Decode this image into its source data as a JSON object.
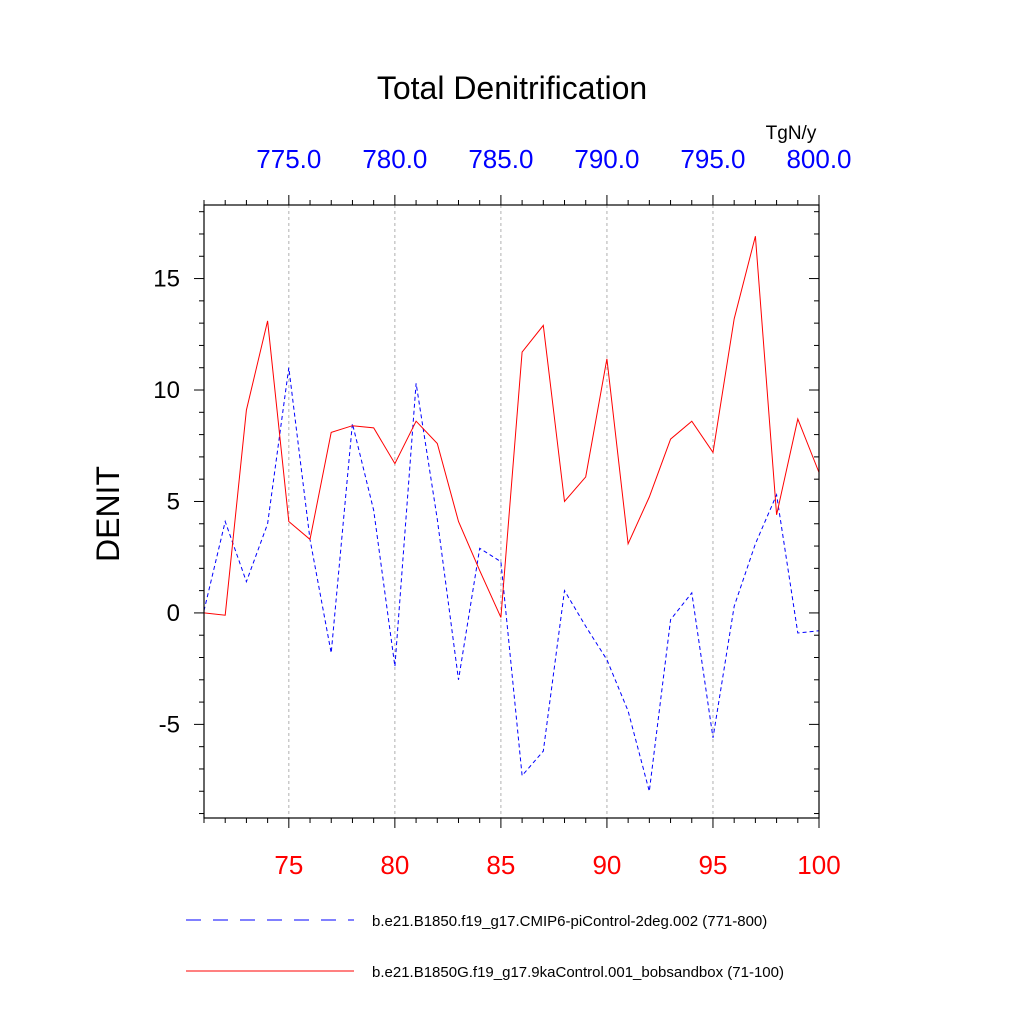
{
  "chart_data": {
    "type": "line",
    "title": "Total Denitrification",
    "ylabel": "DENIT",
    "units": "TgN/y",
    "ylim": [
      -9.2,
      18.3
    ],
    "yticks": [
      -5,
      0,
      5,
      10,
      15
    ],
    "ytick_labels": [
      "-5",
      "0",
      "5",
      "10",
      "15"
    ],
    "bottom_axis": {
      "xlim": [
        71,
        100
      ],
      "ticks": [
        75,
        80,
        85,
        90,
        95,
        100
      ],
      "tick_labels": [
        "75",
        "80",
        "85",
        "90",
        "95",
        "100"
      ],
      "color": "#ff0000"
    },
    "top_axis": {
      "xlim": [
        771,
        800
      ],
      "ticks": [
        775,
        780,
        785,
        790,
        795,
        800
      ],
      "tick_labels": [
        "775.0",
        "780.0",
        "785.0",
        "790.0",
        "795.0",
        "800.0"
      ],
      "color": "#0000ff"
    },
    "grid": "vertical-dashed",
    "series": [
      {
        "name": "b.e21.B1850.f19_g17.CMIP6-piControl-2deg.002 (771-800)",
        "color": "#0000ff",
        "dash": "dashed",
        "axis": "top",
        "x": [
          771,
          772,
          773,
          774,
          775,
          776,
          777,
          778,
          779,
          780,
          781,
          782,
          783,
          784,
          785,
          786,
          787,
          788,
          789,
          790,
          791,
          792,
          793,
          794,
          795,
          796,
          797,
          798,
          799,
          800
        ],
        "values": [
          0.1,
          4.1,
          1.4,
          4.0,
          11.0,
          3.3,
          -1.8,
          8.5,
          4.6,
          -2.4,
          10.3,
          4.2,
          -3.0,
          2.9,
          2.3,
          -7.3,
          -6.2,
          1.0,
          -0.6,
          -2.1,
          -4.4,
          -8.0,
          -0.3,
          0.9,
          -5.6,
          0.3,
          3.1,
          5.3,
          -0.9,
          -0.8
        ]
      },
      {
        "name": "b.e21.B1850G.f19_g17.9kaControl.001_bobsandbox (71-100)",
        "color": "#ff0000",
        "dash": "solid",
        "axis": "bottom",
        "x": [
          71,
          72,
          73,
          74,
          75,
          76,
          77,
          78,
          79,
          80,
          81,
          82,
          83,
          84,
          85,
          86,
          87,
          88,
          89,
          90,
          91,
          92,
          93,
          94,
          95,
          96,
          97,
          98,
          99,
          100
        ],
        "values": [
          0.0,
          -0.1,
          9.1,
          13.1,
          4.1,
          3.3,
          8.1,
          8.4,
          8.3,
          6.7,
          8.6,
          7.6,
          4.1,
          1.9,
          -0.2,
          11.7,
          12.9,
          5.0,
          6.1,
          11.4,
          3.1,
          5.2,
          7.8,
          8.6,
          7.2,
          13.2,
          16.9,
          4.4,
          8.7,
          6.3
        ]
      }
    ]
  }
}
